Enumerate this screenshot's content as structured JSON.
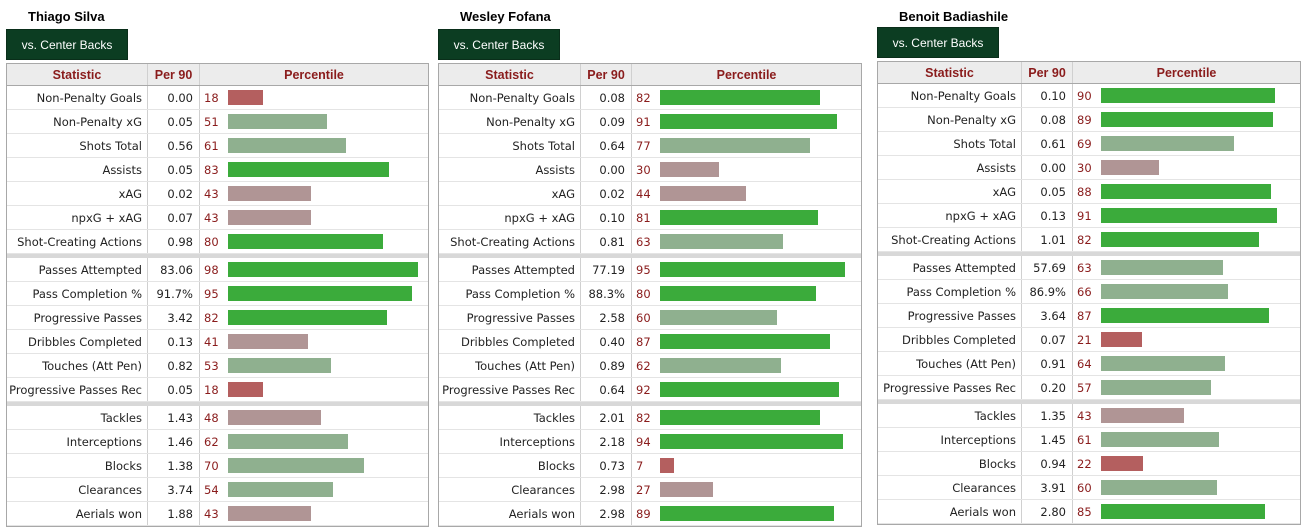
{
  "headers": {
    "statistic": "Statistic",
    "per90": "Per 90",
    "percentile": "Percentile"
  },
  "colors": {
    "tab_bg": "#0c3d22",
    "header_text": "#8a1c1c",
    "high": "#3bab3b",
    "mid_high": "#8fb08f",
    "mid_low": "#b09595",
    "low": "#b45f5f"
  },
  "players": [
    {
      "name": "Thiago Silva",
      "tab": "vs. Center Backs",
      "groups": [
        [
          {
            "stat": "Non-Penalty Goals",
            "per90": "0.00",
            "percentile": 18
          },
          {
            "stat": "Non-Penalty xG",
            "per90": "0.05",
            "percentile": 51
          },
          {
            "stat": "Shots Total",
            "per90": "0.56",
            "percentile": 61
          },
          {
            "stat": "Assists",
            "per90": "0.05",
            "percentile": 83
          },
          {
            "stat": "xAG",
            "per90": "0.02",
            "percentile": 43
          },
          {
            "stat": "npxG + xAG",
            "per90": "0.07",
            "percentile": 43
          },
          {
            "stat": "Shot-Creating Actions",
            "per90": "0.98",
            "percentile": 80
          }
        ],
        [
          {
            "stat": "Passes Attempted",
            "per90": "83.06",
            "percentile": 98
          },
          {
            "stat": "Pass Completion %",
            "per90": "91.7%",
            "percentile": 95
          },
          {
            "stat": "Progressive Passes",
            "per90": "3.42",
            "percentile": 82
          },
          {
            "stat": "Dribbles Completed",
            "per90": "0.13",
            "percentile": 41
          },
          {
            "stat": "Touches (Att Pen)",
            "per90": "0.82",
            "percentile": 53
          },
          {
            "stat": "Progressive Passes Rec",
            "per90": "0.05",
            "percentile": 18
          }
        ],
        [
          {
            "stat": "Tackles",
            "per90": "1.43",
            "percentile": 48
          },
          {
            "stat": "Interceptions",
            "per90": "1.46",
            "percentile": 62
          },
          {
            "stat": "Blocks",
            "per90": "1.38",
            "percentile": 70
          },
          {
            "stat": "Clearances",
            "per90": "3.74",
            "percentile": 54
          },
          {
            "stat": "Aerials won",
            "per90": "1.88",
            "percentile": 43
          }
        ]
      ]
    },
    {
      "name": "Wesley Fofana",
      "tab": "vs. Center Backs",
      "groups": [
        [
          {
            "stat": "Non-Penalty Goals",
            "per90": "0.08",
            "percentile": 82
          },
          {
            "stat": "Non-Penalty xG",
            "per90": "0.09",
            "percentile": 91
          },
          {
            "stat": "Shots Total",
            "per90": "0.64",
            "percentile": 77
          },
          {
            "stat": "Assists",
            "per90": "0.00",
            "percentile": 30
          },
          {
            "stat": "xAG",
            "per90": "0.02",
            "percentile": 44
          },
          {
            "stat": "npxG + xAG",
            "per90": "0.10",
            "percentile": 81
          },
          {
            "stat": "Shot-Creating Actions",
            "per90": "0.81",
            "percentile": 63
          }
        ],
        [
          {
            "stat": "Passes Attempted",
            "per90": "77.19",
            "percentile": 95
          },
          {
            "stat": "Pass Completion %",
            "per90": "88.3%",
            "percentile": 80
          },
          {
            "stat": "Progressive Passes",
            "per90": "2.58",
            "percentile": 60
          },
          {
            "stat": "Dribbles Completed",
            "per90": "0.40",
            "percentile": 87
          },
          {
            "stat": "Touches (Att Pen)",
            "per90": "0.89",
            "percentile": 62
          },
          {
            "stat": "Progressive Passes Rec",
            "per90": "0.64",
            "percentile": 92
          }
        ],
        [
          {
            "stat": "Tackles",
            "per90": "2.01",
            "percentile": 82
          },
          {
            "stat": "Interceptions",
            "per90": "2.18",
            "percentile": 94
          },
          {
            "stat": "Blocks",
            "per90": "0.73",
            "percentile": 7
          },
          {
            "stat": "Clearances",
            "per90": "2.98",
            "percentile": 27
          },
          {
            "stat": "Aerials won",
            "per90": "2.98",
            "percentile": 89
          }
        ]
      ]
    },
    {
      "name": "Benoit Badiashile",
      "tab": "vs. Center Backs",
      "groups": [
        [
          {
            "stat": "Non-Penalty Goals",
            "per90": "0.10",
            "percentile": 90
          },
          {
            "stat": "Non-Penalty xG",
            "per90": "0.08",
            "percentile": 89
          },
          {
            "stat": "Shots Total",
            "per90": "0.61",
            "percentile": 69
          },
          {
            "stat": "Assists",
            "per90": "0.00",
            "percentile": 30
          },
          {
            "stat": "xAG",
            "per90": "0.05",
            "percentile": 88
          },
          {
            "stat": "npxG + xAG",
            "per90": "0.13",
            "percentile": 91
          },
          {
            "stat": "Shot-Creating Actions",
            "per90": "1.01",
            "percentile": 82
          }
        ],
        [
          {
            "stat": "Passes Attempted",
            "per90": "57.69",
            "percentile": 63
          },
          {
            "stat": "Pass Completion %",
            "per90": "86.9%",
            "percentile": 66
          },
          {
            "stat": "Progressive Passes",
            "per90": "3.64",
            "percentile": 87
          },
          {
            "stat": "Dribbles Completed",
            "per90": "0.07",
            "percentile": 21
          },
          {
            "stat": "Touches (Att Pen)",
            "per90": "0.91",
            "percentile": 64
          },
          {
            "stat": "Progressive Passes Rec",
            "per90": "0.20",
            "percentile": 57
          }
        ],
        [
          {
            "stat": "Tackles",
            "per90": "1.35",
            "percentile": 43
          },
          {
            "stat": "Interceptions",
            "per90": "1.45",
            "percentile": 61
          },
          {
            "stat": "Blocks",
            "per90": "0.94",
            "percentile": 22
          },
          {
            "stat": "Clearances",
            "per90": "3.91",
            "percentile": 60
          },
          {
            "stat": "Aerials won",
            "per90": "2.80",
            "percentile": 85
          }
        ]
      ]
    }
  ]
}
